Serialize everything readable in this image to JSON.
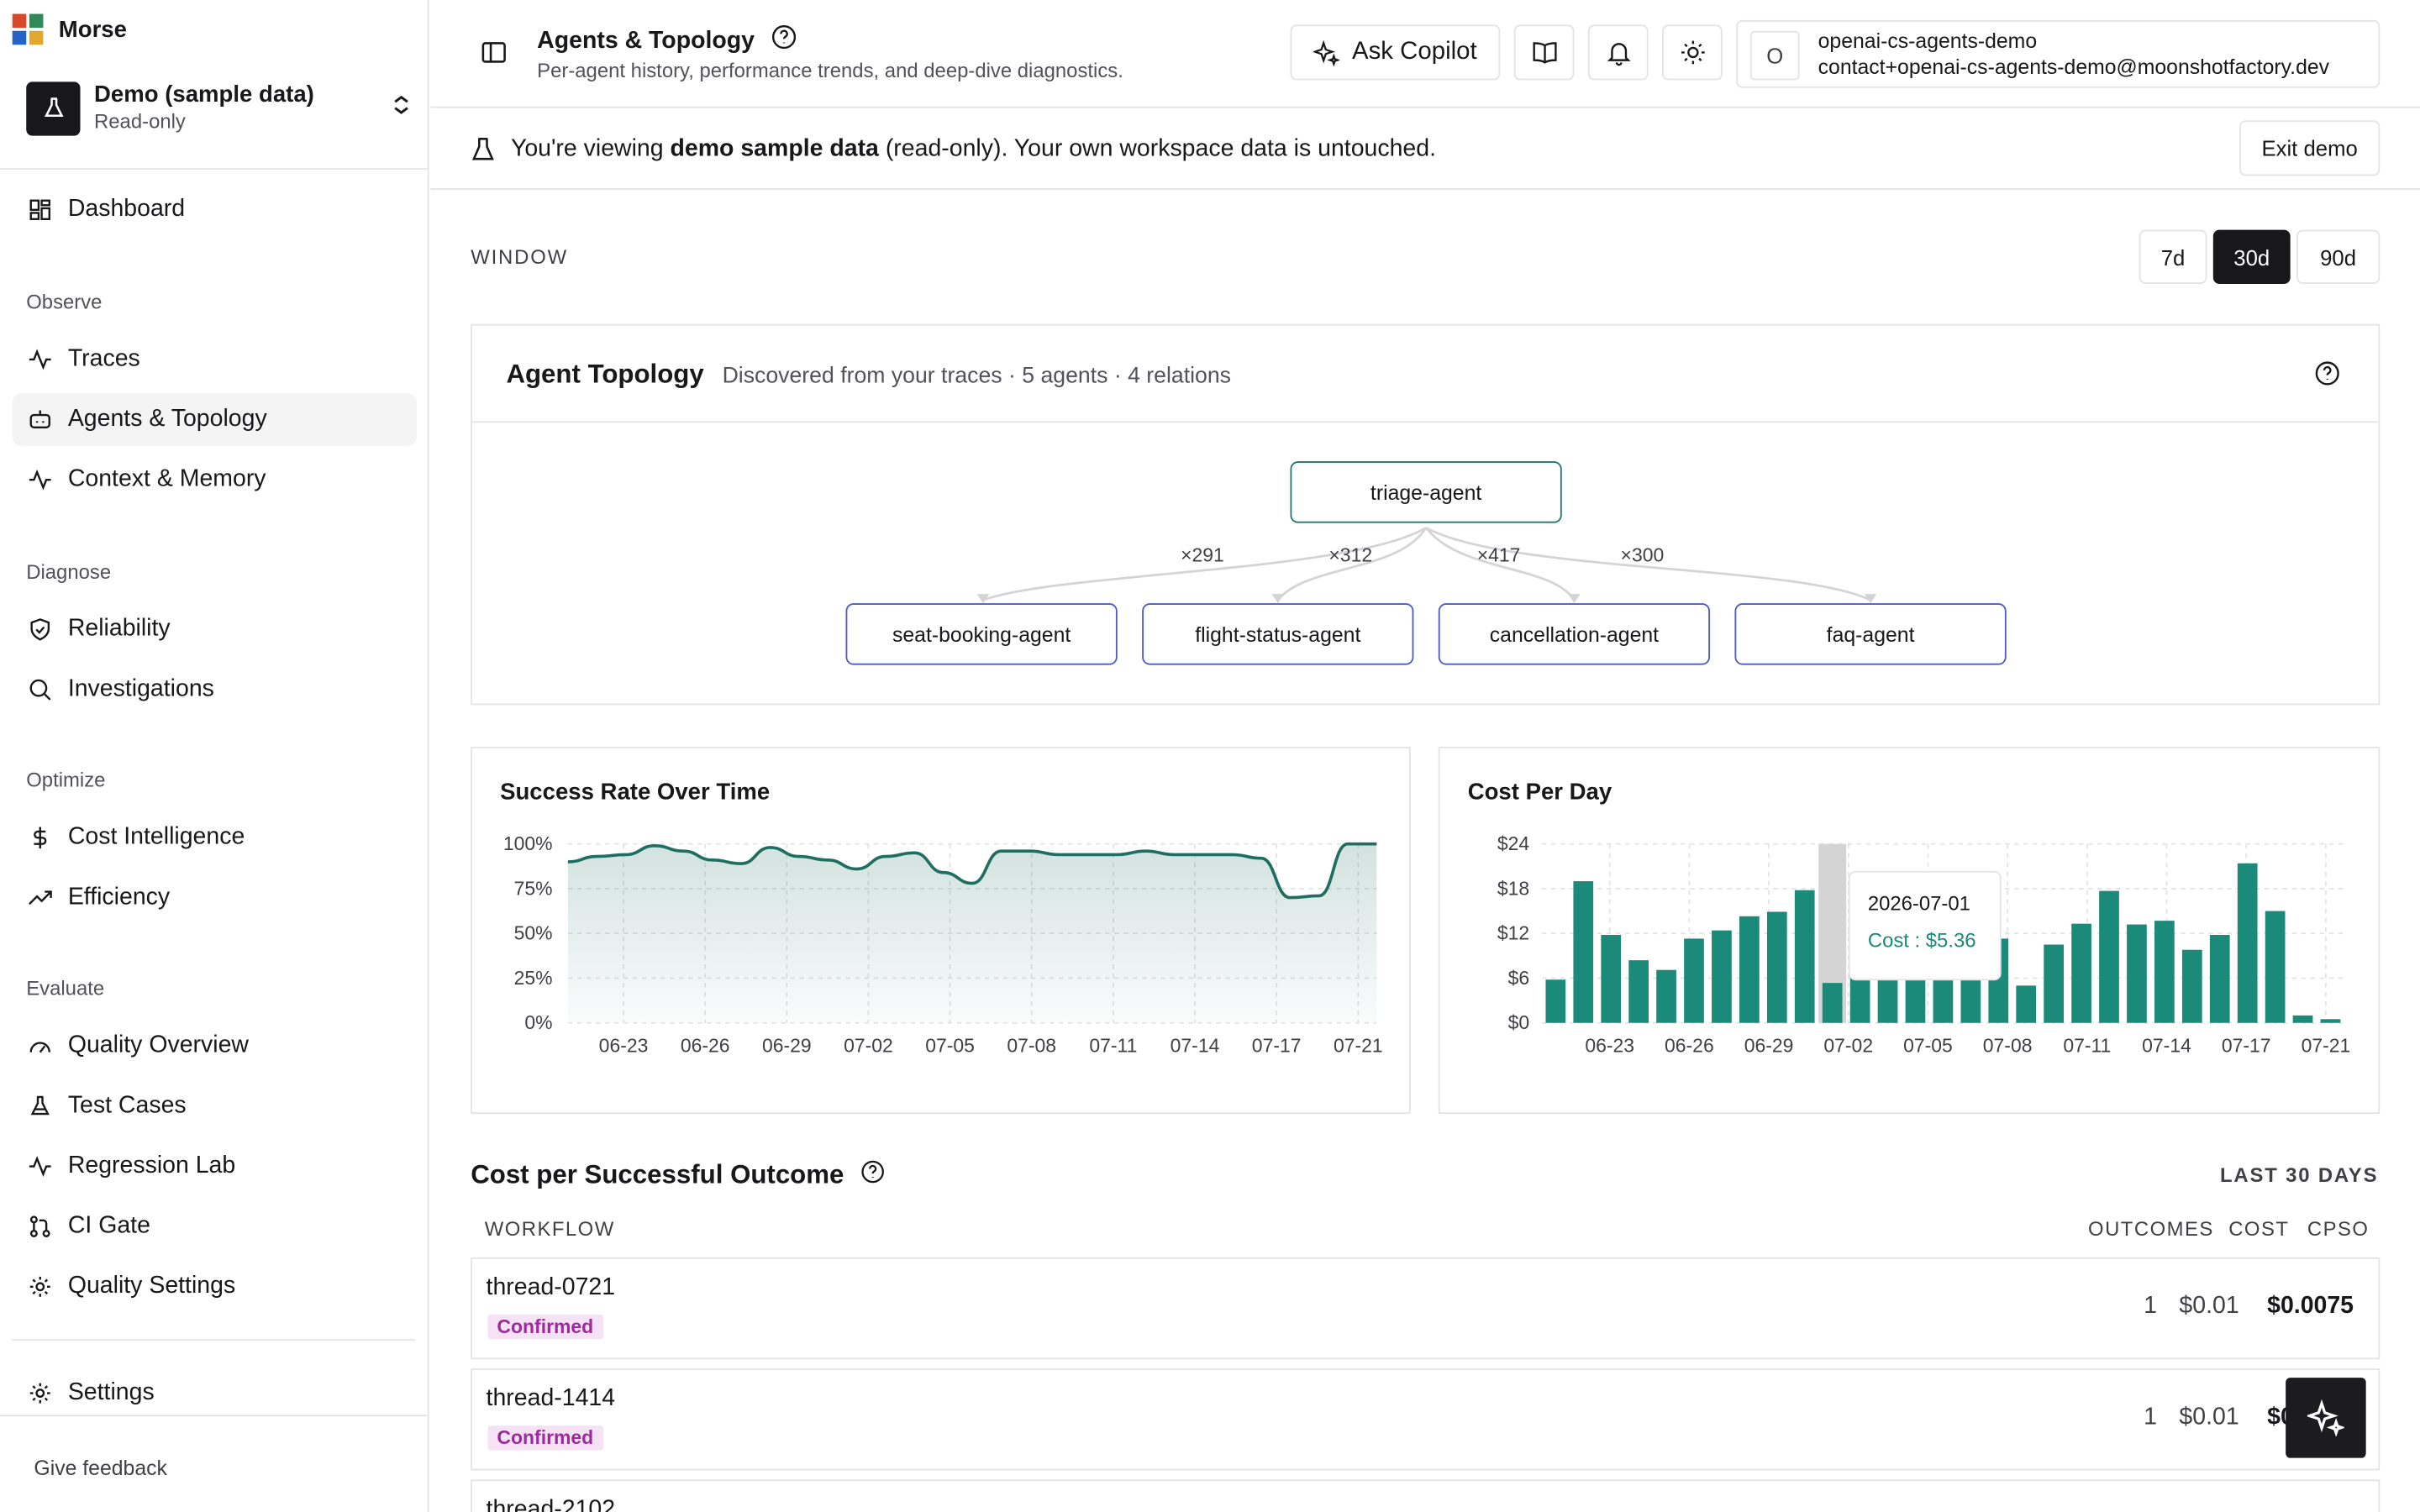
{
  "app": {
    "name": "Morse"
  },
  "org": {
    "name": "Demo (sample data)",
    "sub": "Read-only"
  },
  "nav": {
    "dashboard": "Dashboard",
    "sections": {
      "observe": "Observe",
      "diagnose": "Diagnose",
      "optimize": "Optimize",
      "evaluate": "Evaluate"
    },
    "traces": "Traces",
    "agents": "Agents & Topology",
    "context": "Context & Memory",
    "reliability": "Reliability",
    "investigations": "Investigations",
    "cost": "Cost Intelligence",
    "efficiency": "Efficiency",
    "quality_overview": "Quality Overview",
    "test_cases": "Test Cases",
    "regression": "Regression Lab",
    "ci_gate": "CI Gate",
    "quality_settings": "Quality Settings",
    "settings": "Settings",
    "feedback": "Give feedback"
  },
  "header": {
    "title": "Agents & Topology",
    "subtitle": "Per-agent history, performance trends, and deep-dive diagnostics.",
    "copilot": "Ask Copilot",
    "account": {
      "initial": "O",
      "name": "openai-cs-agents-demo",
      "email": "contact+openai-cs-agents-demo@moonshotfactory.dev"
    }
  },
  "banner": {
    "prefix": "You're viewing ",
    "bold": "demo sample data",
    "suffix": " (read-only). Your own workspace data is untouched.",
    "exit": "Exit demo"
  },
  "window": {
    "label": "WINDOW",
    "options": [
      "7d",
      "30d",
      "90d"
    ],
    "selected": "30d"
  },
  "topology": {
    "title": "Agent Topology",
    "subtitle": "Discovered from your traces · 5 agents · 4 relations",
    "root": "triage-agent",
    "children": [
      "seat-booking-agent",
      "flight-status-agent",
      "cancellation-agent",
      "faq-agent"
    ],
    "edges": [
      "×291",
      "×312",
      "×417",
      "×300"
    ],
    "colors": {
      "root_border": "#1f7a6b",
      "child_border": "#4f59c9"
    }
  },
  "success_chart": {
    "chart_data": {
      "type": "area",
      "title": "Success Rate Over Time",
      "x_ticks": [
        "06-23",
        "06-26",
        "06-29",
        "07-02",
        "07-05",
        "07-08",
        "07-11",
        "07-14",
        "07-17",
        "07-21"
      ],
      "y_ticks": [
        "100%",
        "75%",
        "50%",
        "25%",
        "0%"
      ],
      "ylim": [
        0,
        100
      ],
      "values": [
        90,
        93,
        94,
        99,
        96,
        91,
        89,
        98,
        93,
        91,
        86,
        93,
        95,
        84,
        78,
        96,
        96,
        94,
        94,
        94,
        96,
        94,
        94,
        94,
        92,
        70,
        71,
        100,
        100
      ],
      "color": "#1f6e62"
    }
  },
  "cost_chart": {
    "chart_data": {
      "type": "bar",
      "title": "Cost Per Day",
      "x_ticks": [
        "06-23",
        "06-26",
        "06-29",
        "07-02",
        "07-05",
        "07-08",
        "07-11",
        "07-14",
        "07-17",
        "07-21"
      ],
      "y_ticks": [
        "$24",
        "$18",
        "$12",
        "$6",
        "$0"
      ],
      "ylim": [
        0,
        24
      ],
      "values": [
        5.8,
        19,
        11.8,
        8.4,
        7.1,
        11.3,
        12.4,
        14.3,
        14.9,
        17.8,
        5.36,
        7,
        6,
        8,
        9,
        11,
        11.3,
        5,
        10.5,
        13.3,
        17.7,
        13.2,
        13.7,
        9.8,
        11.8,
        21.4,
        15,
        1,
        0.5
      ],
      "highlight_index": 10,
      "color": "#1c8a78",
      "tooltip": {
        "date": "2026-07-01",
        "label": "Cost : $5.36"
      }
    }
  },
  "cpso": {
    "title": "Cost per Successful Outcome",
    "window": "LAST 30 DAYS",
    "columns": {
      "workflow": "WORKFLOW",
      "outcomes": "OUTCOMES",
      "cost": "COST",
      "cpso": "CPSO"
    },
    "rows": [
      {
        "name": "thread-0721",
        "status": "Confirmed",
        "outcomes": "1",
        "cost": "$0.01",
        "cpso": "$0.0075"
      },
      {
        "name": "thread-1414",
        "status": "Confirmed",
        "outcomes": "1",
        "cost": "$0.01",
        "cpso": "$0.0075"
      },
      {
        "name": "thread-2102"
      }
    ]
  }
}
